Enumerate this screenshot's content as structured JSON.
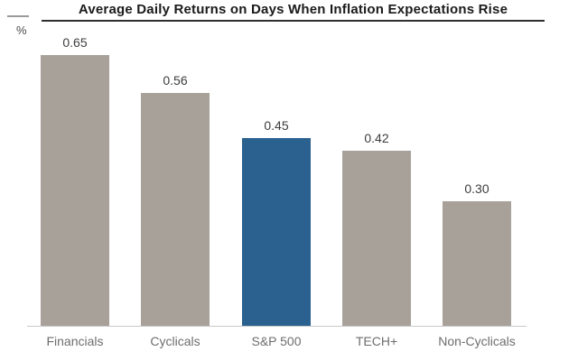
{
  "axis": {
    "unit_label": "%"
  },
  "chart_data": {
    "type": "bar",
    "title": "Average Daily Returns on Days When Inflation Expectations Rise",
    "categories": [
      "Financials",
      "Cyclicals",
      "S&P 500",
      "TECH+",
      "Non-Cyclicals"
    ],
    "values": [
      0.65,
      0.56,
      0.45,
      0.42,
      0.3
    ],
    "value_labels": [
      "0.65",
      "0.56",
      "0.45",
      "0.42",
      "0.30"
    ],
    "xlabel": "",
    "ylabel": "%",
    "ylim": [
      0,
      0.7
    ],
    "grid": false,
    "legend": "none",
    "highlight_index": 2,
    "colors": {
      "bar_default": "#a8a19a",
      "bar_highlight": "#2a618f",
      "title_text": "#1b1b1b",
      "title_rule": "#2f2f2f",
      "value_label_text": "#3d3d3d",
      "category_label_text": "#6e6e6e",
      "baseline": "#c9c9c9"
    }
  }
}
